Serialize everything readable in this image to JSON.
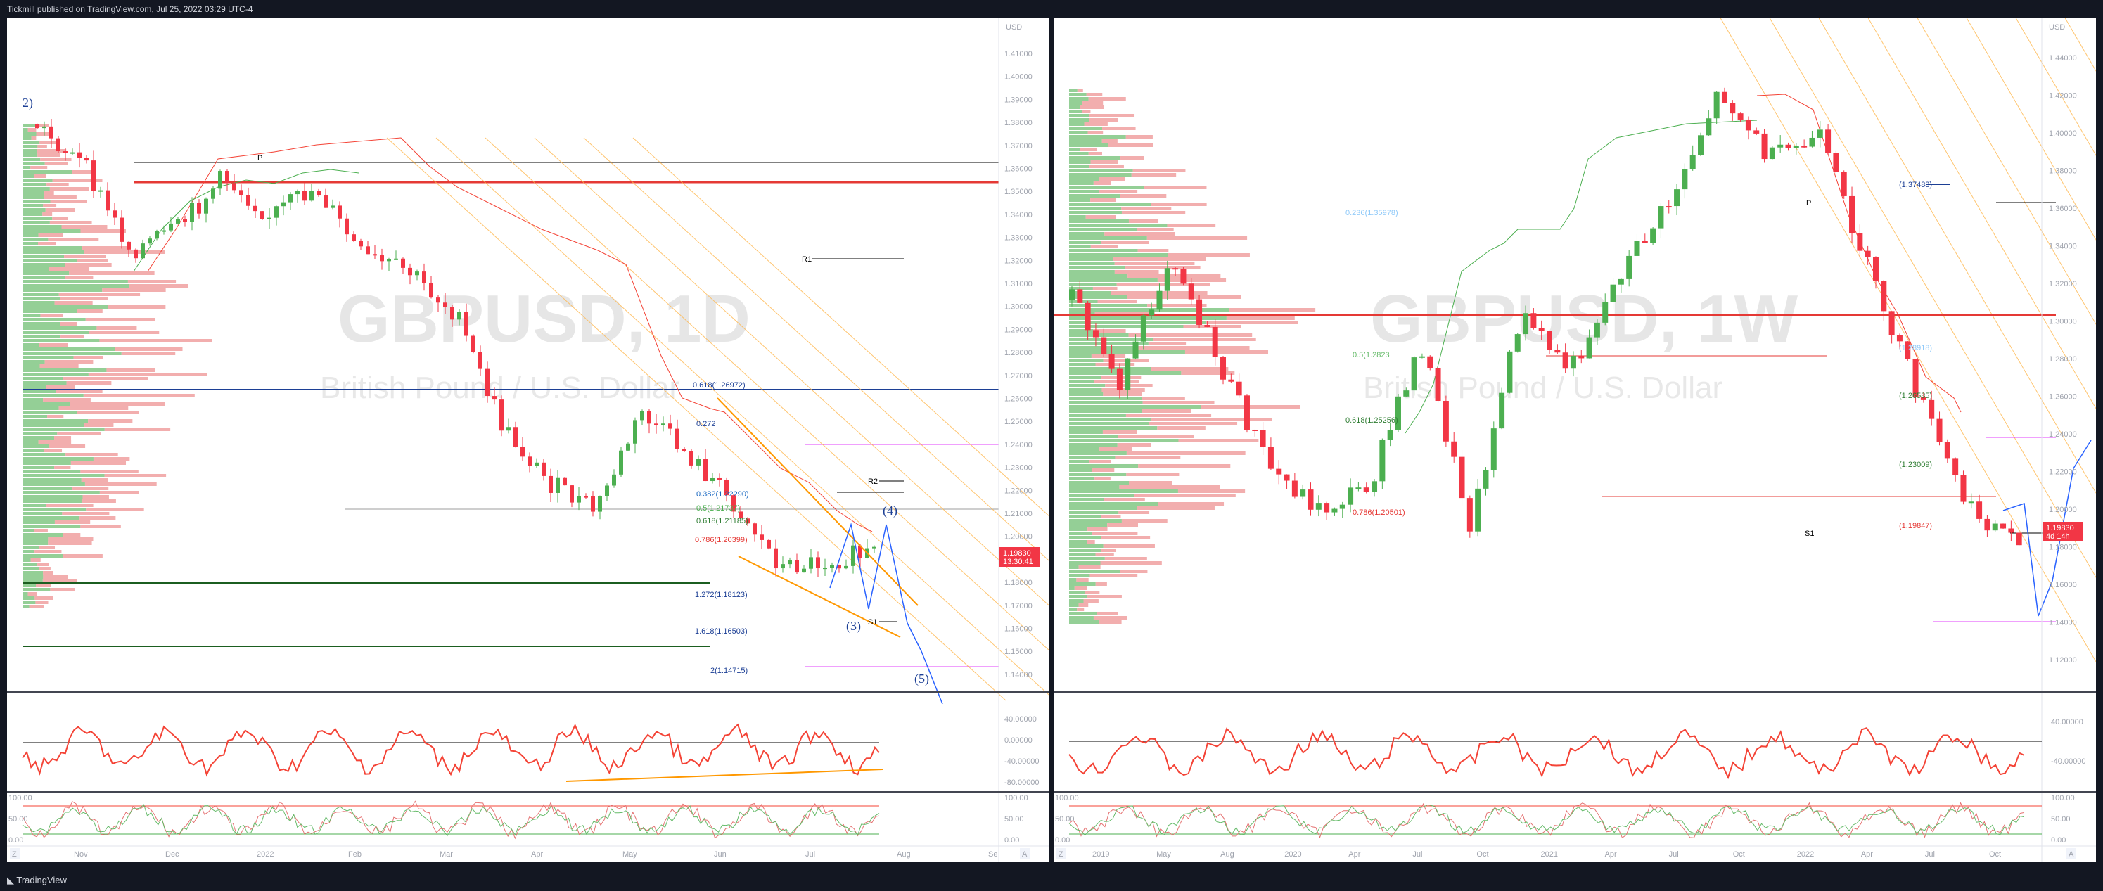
{
  "header": {
    "publisher": "Tickmill published on TradingView.com, Jul 25, 2022 03:29 UTC-4"
  },
  "footer": {
    "brand": "TradingView"
  },
  "colors": {
    "up": "#4caf50",
    "down": "#f23645",
    "fib_blue": "#1c3f95",
    "price_tag": "#f23645"
  },
  "left": {
    "symbol": "GBPUSD, 1D",
    "name": "British Pound / U.S. Dollar",
    "currency": "USD",
    "price_tag": "1.19830",
    "countdown": "13:30:41",
    "price_labels": [
      "1.41000",
      "1.40000",
      "1.39000",
      "1.38000",
      "1.37000",
      "1.36000",
      "1.35000",
      "1.34000",
      "1.33000",
      "1.32000",
      "1.31000",
      "1.30000",
      "1.29000",
      "1.28000",
      "1.27000",
      "1.26000",
      "1.25000",
      "1.24000",
      "1.23000",
      "1.22000",
      "1.21000",
      "1.20000",
      "1.19000",
      "1.18000",
      "1.17000",
      "1.16000",
      "1.15000",
      "1.14000"
    ],
    "time_labels": [
      "Nov",
      "Dec",
      "2022",
      "Feb",
      "Mar",
      "Apr",
      "May",
      "Jun",
      "Jul",
      "Aug",
      "Se"
    ],
    "fib_labels": [
      "0.618(1.26972)",
      "0.272",
      "0.382(1.22290)",
      "0.5(1.21737)",
      "0.618(1.21185)",
      "0.786(1.20399)",
      "1.272(1.18123)",
      "1.618(1.16503)",
      "2(1.14715)"
    ],
    "pivots": [
      "P",
      "R1",
      "R2",
      "S1"
    ],
    "waves": [
      "2)",
      "(3)",
      "(4)",
      "(5)"
    ],
    "rsi_labels": [
      "40.00000",
      "0.00000",
      "-40.00000",
      "-80.00000"
    ],
    "stoch_labels": [
      "100.00",
      "50.00",
      "0.00"
    ],
    "axis_buttons": [
      "Z",
      "A"
    ],
    "axis_top": "USD"
  },
  "right": {
    "symbol": "GBPUSD, 1W",
    "name": "British Pound / U.S. Dollar",
    "currency": "USD",
    "price_tag": "1.19830",
    "countdown": "4d 14h",
    "price_labels": [
      "1.44000",
      "1.42000",
      "1.40000",
      "1.38000",
      "1.36000",
      "1.34000",
      "1.32000",
      "1.30000",
      "1.28000",
      "1.26000",
      "1.24000",
      "1.22000",
      "1.20000",
      "1.18000",
      "1.16000",
      "1.14000",
      "1.12000"
    ],
    "time_labels": [
      "2019",
      "May",
      "Aug",
      "2020",
      "Apr",
      "Jul",
      "Oct",
      "2021",
      "Apr",
      "Jul",
      "Oct",
      "2022",
      "Apr",
      "Jul",
      "Oct"
    ],
    "fib_labels": [
      "0.236(1.35978)",
      "0.5(1.2823",
      "0.618(1.25256)",
      "0.786(1.20501)",
      "(1.37488)",
      "(1.28918)",
      "(1.26585)",
      "(1.23009)",
      "(1.19847)"
    ],
    "pivots": [
      "P",
      "S1"
    ],
    "rsi_labels": [
      "40.00000",
      "-40.00000"
    ],
    "stoch_labels": [
      "100.00",
      "50.00",
      "0.00"
    ],
    "axis_buttons": [
      "Z",
      "A"
    ]
  }
}
